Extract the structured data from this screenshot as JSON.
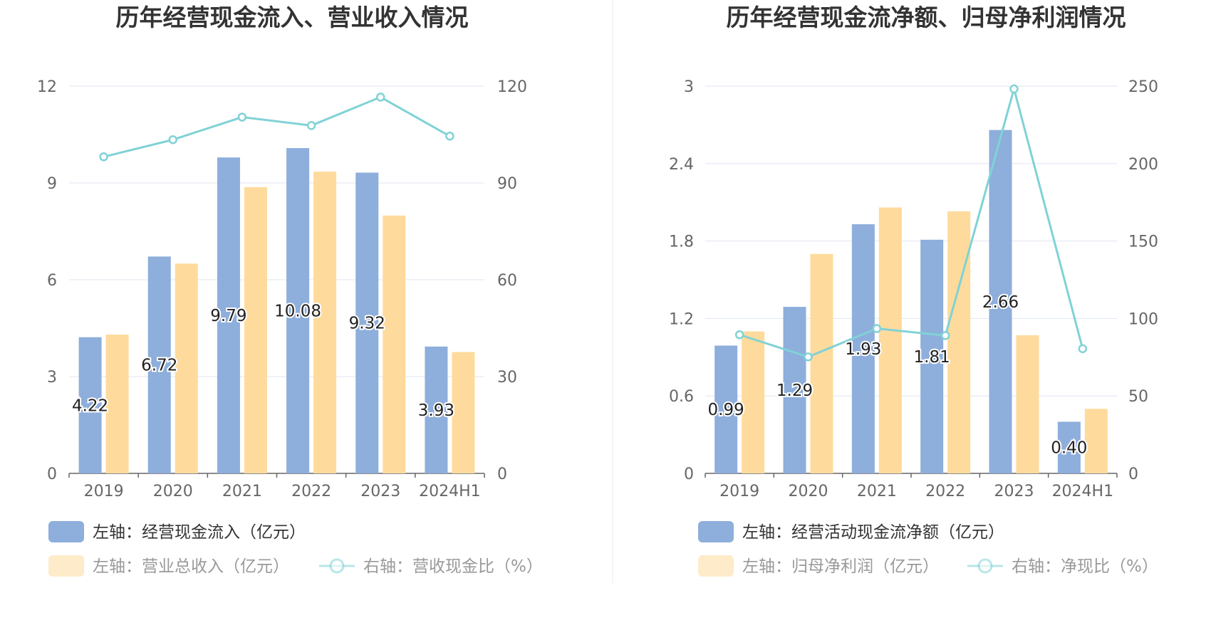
{
  "colors": {
    "bar_primary": "#8eaedc",
    "bar_secondary": "#fedb9c",
    "line": "#80d2d6",
    "grid": "#e0e6f1",
    "axis": "#666666",
    "divider": "#eeeeee"
  },
  "chart_data": [
    {
      "type": "bar",
      "title": "历年经营现金流入、营业收入情况",
      "categories": [
        "2019",
        "2020",
        "2021",
        "2022",
        "2023",
        "2024H1"
      ],
      "ylim_left": [
        0,
        12
      ],
      "yticks_left": [
        0,
        3,
        6,
        9,
        12
      ],
      "ylim_right": [
        0,
        120
      ],
      "yticks_right": [
        0,
        30,
        60,
        90,
        120
      ],
      "grid": true,
      "series": [
        {
          "name": "左轴：经营现金流入（亿元）",
          "axis": "left",
          "kind": "bar",
          "color": "#8eaedc",
          "values": [
            4.22,
            6.72,
            9.79,
            10.08,
            9.32,
            3.93
          ],
          "labels": [
            "4.22",
            "6.72",
            "9.79",
            "10.08",
            "9.32",
            "3.93"
          ]
        },
        {
          "name": "左轴：营业总收入（亿元）",
          "axis": "left",
          "kind": "bar",
          "color": "#fedb9c",
          "values": [
            4.3,
            6.5,
            8.87,
            9.35,
            7.99,
            3.76
          ]
        },
        {
          "name": "右轴：营收现金比（%）",
          "axis": "right",
          "kind": "line",
          "color": "#80d2d6",
          "values": [
            98.1,
            103.4,
            110.4,
            107.8,
            116.6,
            104.5
          ]
        }
      ],
      "legend_rows": [
        [
          {
            "series": 0,
            "label": "左轴：经营现金流入（亿元）",
            "active": true
          }
        ],
        [
          {
            "series": 1,
            "label": "左轴：营业总收入（亿元）",
            "active": false
          },
          {
            "series": 2,
            "label": "右轴：营收现金比（%）",
            "active": false
          }
        ]
      ]
    },
    {
      "type": "bar",
      "title": "历年经营现金流净额、归母净利润情况",
      "categories": [
        "2019",
        "2020",
        "2021",
        "2022",
        "2023",
        "2024H1"
      ],
      "ylim_left": [
        0,
        3
      ],
      "yticks_left": [
        0,
        0.6,
        1.2,
        1.8,
        2.4,
        3
      ],
      "ylim_right": [
        0,
        250
      ],
      "yticks_right": [
        0,
        50,
        100,
        150,
        200,
        250
      ],
      "grid": true,
      "series": [
        {
          "name": "左轴：经营活动现金流净额（亿元）",
          "axis": "left",
          "kind": "bar",
          "color": "#8eaedc",
          "values": [
            0.99,
            1.29,
            1.93,
            1.81,
            2.66,
            0.4
          ],
          "labels": [
            "0.99",
            "1.29",
            "1.93",
            "1.81",
            "2.66",
            "0.40"
          ]
        },
        {
          "name": "左轴：归母净利润（亿元）",
          "axis": "left",
          "kind": "bar",
          "color": "#fedb9c",
          "values": [
            1.1,
            1.7,
            2.06,
            2.03,
            1.07,
            0.5
          ]
        },
        {
          "name": "右轴：净现比（%）",
          "axis": "right",
          "kind": "line",
          "color": "#80d2d6",
          "values": [
            89.5,
            75.2,
            93.5,
            89.0,
            248.2,
            80.5
          ]
        }
      ],
      "legend_rows": [
        [
          {
            "series": 0,
            "label": "左轴：经营活动现金流净额（亿元）",
            "active": true
          }
        ],
        [
          {
            "series": 1,
            "label": "左轴：归母净利润（亿元）",
            "active": false
          },
          {
            "series": 2,
            "label": "右轴：净现比（%）",
            "active": false
          }
        ]
      ]
    }
  ]
}
